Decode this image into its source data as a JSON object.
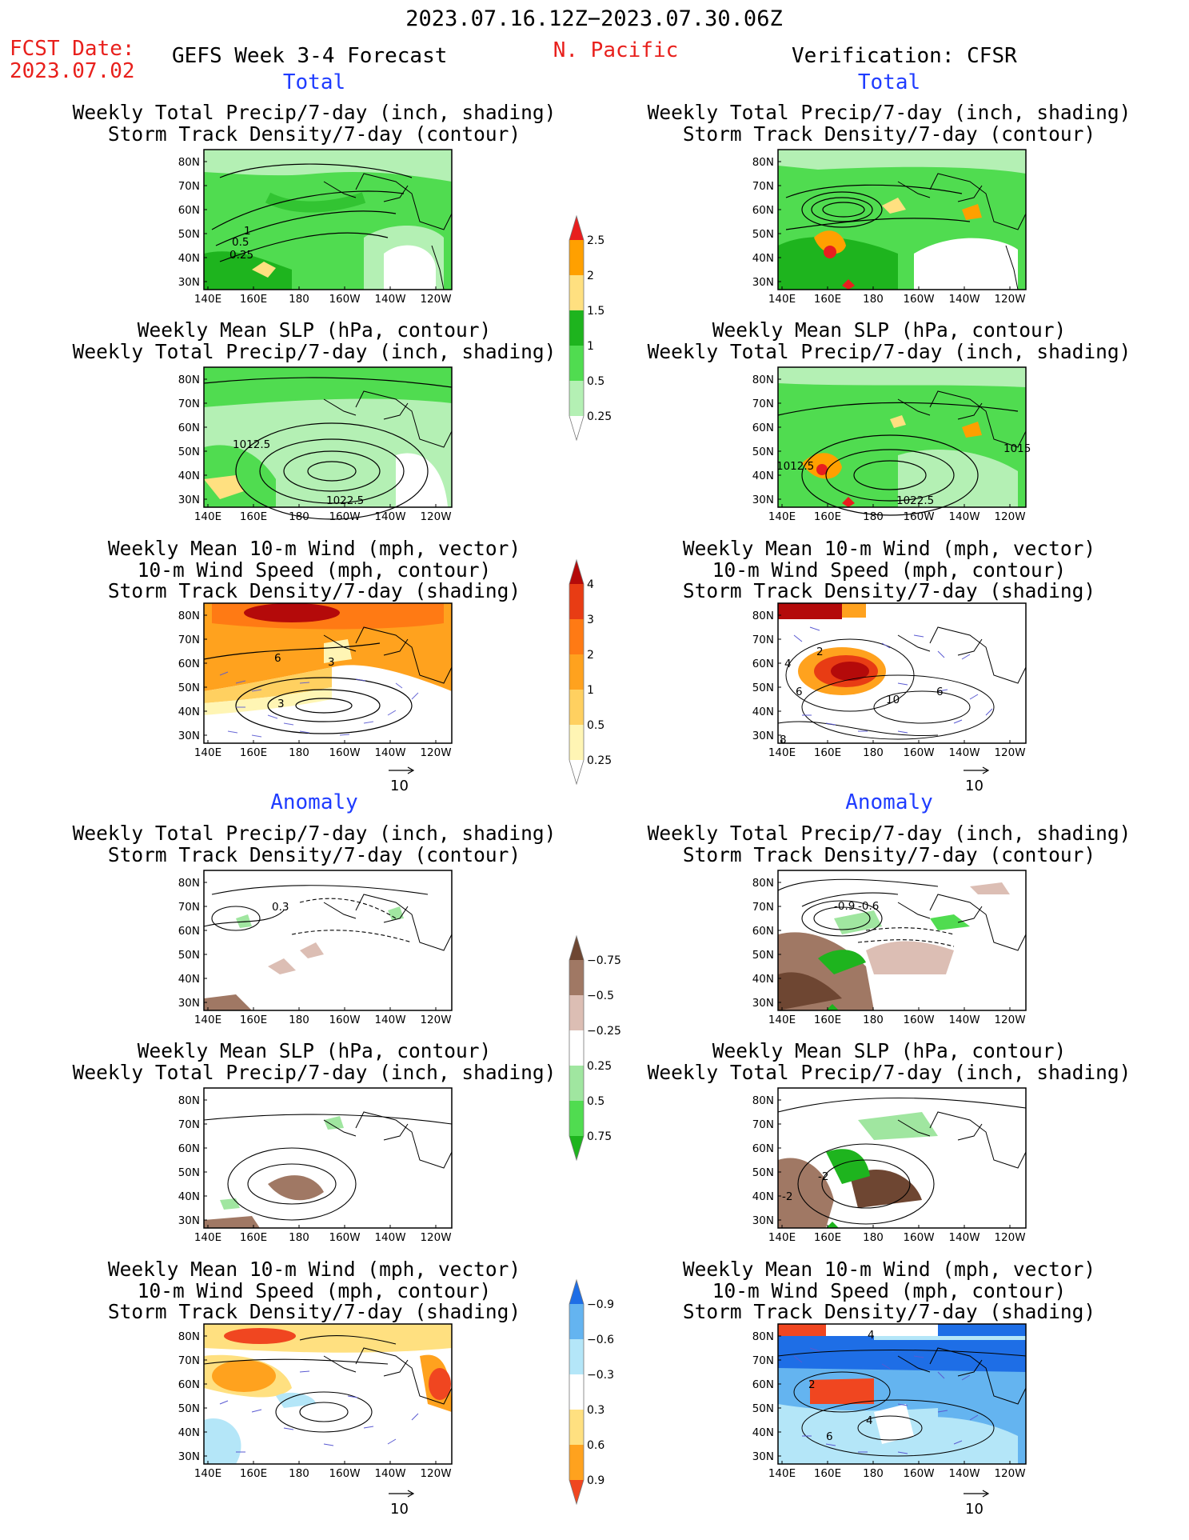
{
  "header": {
    "period": "2023.07.16.12Z−2023.07.30.06Z",
    "fcst_date_label": "FCST Date:",
    "fcst_date_value": "2023.07.02",
    "forecast_title": "GEFS Week 3-4 Forecast",
    "region": "N. Pacific",
    "verification": "Verification: CFSR"
  },
  "sections": {
    "total_left": "Total",
    "total_right": "Total",
    "anomaly_left": "Anomaly",
    "anomaly_right": "Anomaly"
  },
  "panel_titles": {
    "precip_track": [
      "Weekly Total Precip/7-day (inch, shading)",
      "Storm Track Density/7-day (contour)"
    ],
    "slp_precip": [
      "Weekly Mean SLP (hPa, contour)",
      "Weekly Total Precip/7-day (inch, shading)"
    ],
    "wind_track": [
      "Weekly Mean 10-m Wind (mph, vector)",
      "10-m Wind Speed (mph, contour)",
      "Storm Track Density/7-day (shading)"
    ]
  },
  "map_axes": {
    "lat_labels": [
      "80N",
      "70N",
      "60N",
      "50N",
      "40N",
      "30N"
    ],
    "lon_labels": [
      "140E",
      "160E",
      "180",
      "160W",
      "140W",
      "120W"
    ]
  },
  "contour_labels": {
    "total_precip_track_fcst": [
      "1",
      "0.5",
      "0.25"
    ],
    "total_slp_fcst": [
      "1012.5",
      "1022.5"
    ],
    "total_slp_cfsr": [
      "1012.5",
      "1022.5",
      "1015"
    ],
    "total_wind_fcst": [
      "6",
      "3",
      "3"
    ],
    "total_wind_cfsr": [
      "2",
      "4",
      "6",
      "10",
      "6",
      "8"
    ],
    "anom_precip_track_fcst": [
      "0.3"
    ],
    "anom_precip_track_cfsr": [
      "-0.9",
      "-0.6"
    ],
    "anom_slp_cfsr": [
      "-2",
      "-2"
    ],
    "anom_wind_cfsr": [
      "4",
      "4",
      "6",
      "2"
    ]
  },
  "vector_reference": {
    "value": "10"
  },
  "colorbars": {
    "precip_total": {
      "labels": [
        "0.25",
        "0.5",
        "1",
        "1.5",
        "2",
        "2.5"
      ],
      "colors": [
        "#ffffff",
        "#b4f0b4",
        "#50dc50",
        "#1eb41e",
        "#ffe080",
        "#ffa000",
        "#e81e1e"
      ]
    },
    "track_total": {
      "labels": [
        "0.25",
        "0.5",
        "1",
        "2",
        "3",
        "4"
      ],
      "colors": [
        "#ffffff",
        "#fff5b4",
        "#ffd060",
        "#ffa21e",
        "#ff7a14",
        "#e83c14",
        "#b40a0a"
      ]
    },
    "precip_anom": {
      "labels": [
        "0.75",
        "0.5",
        "0.25",
        "−0.25",
        "−0.5",
        "−0.75"
      ],
      "colors": [
        "#1eb41e",
        "#50dc50",
        "#a0e6a0",
        "#ffffff",
        "#dcbeb4",
        "#a07864",
        "#6e4632"
      ]
    },
    "track_anom": {
      "labels": [
        "0.9",
        "0.6",
        "0.3",
        "−0.3",
        "−0.6",
        "−0.9"
      ],
      "colors": [
        "#f04620",
        "#ffa21e",
        "#ffe080",
        "#ffffff",
        "#b4e6f8",
        "#64b4f0",
        "#1e6ee6"
      ]
    }
  },
  "map_colors": {
    "ocean_white": "#ffffff",
    "land_outline": "#000000",
    "vector_color": "#5a5ad2"
  }
}
